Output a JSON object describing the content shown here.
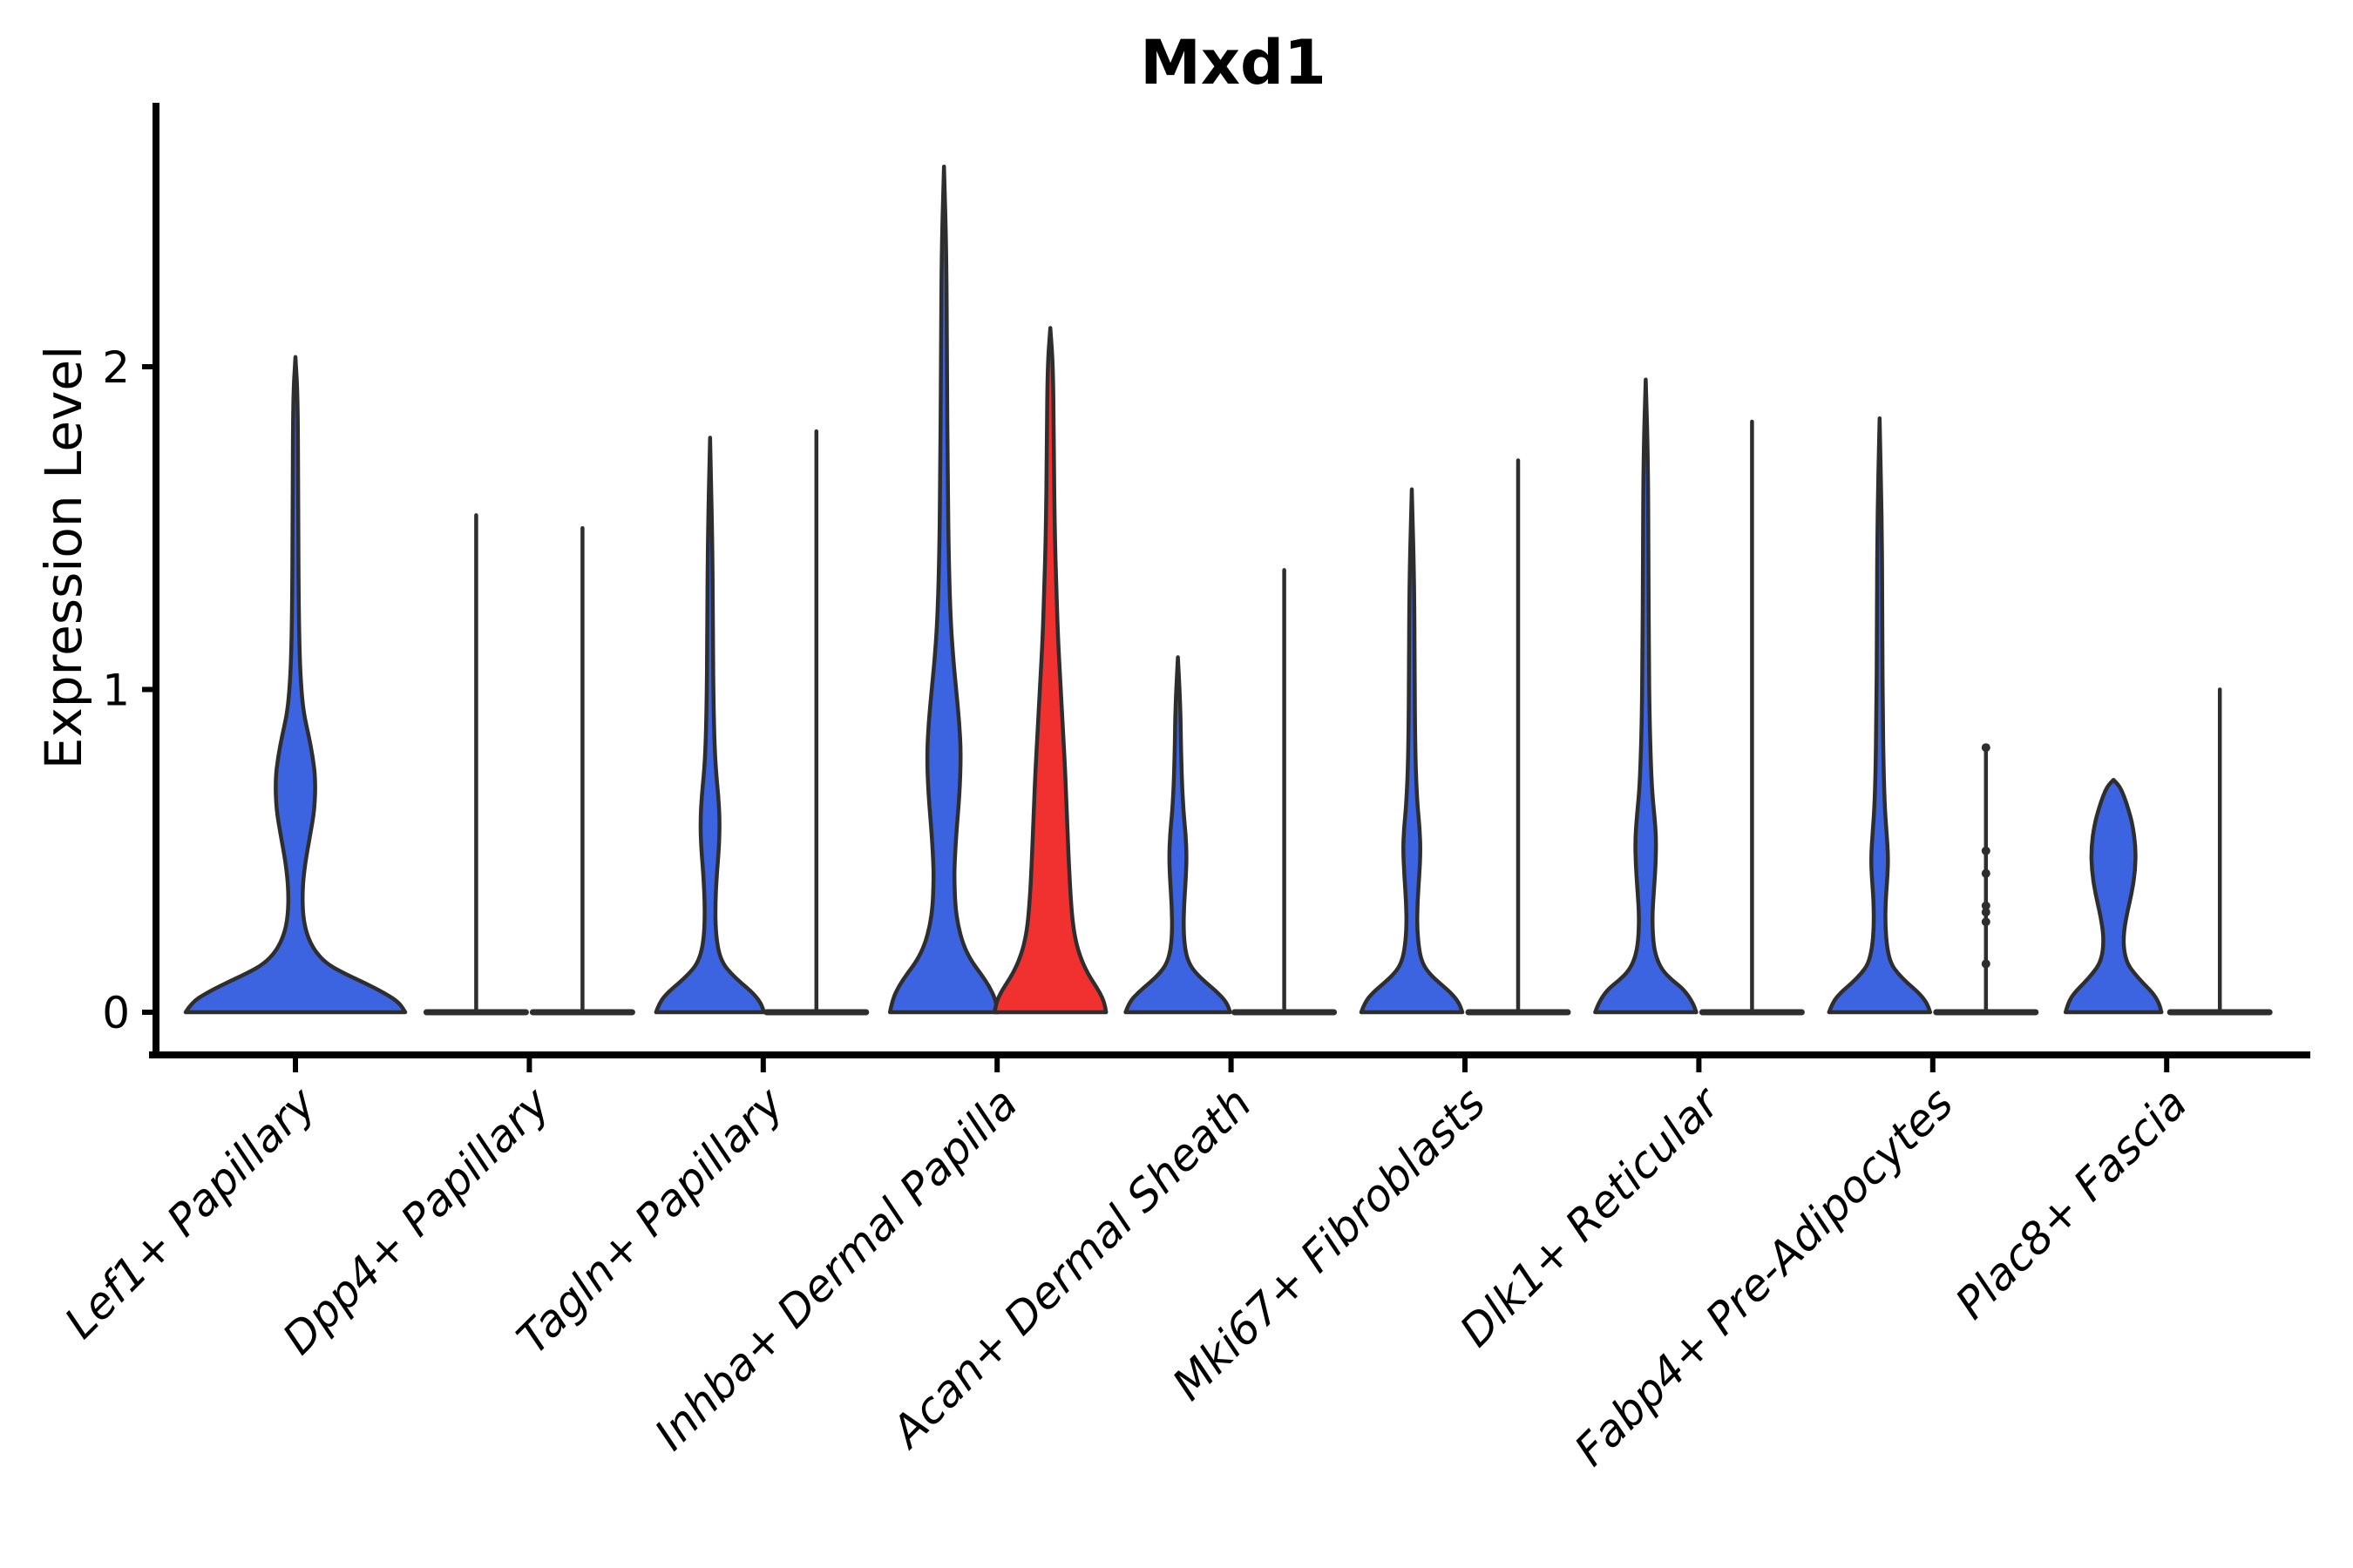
{
  "chart_data": {
    "type": "violin",
    "title": "Mxd1",
    "xlabel": "",
    "ylabel": "Expression Level",
    "ylim": [
      0,
      2.9
    ],
    "yticks": [
      0,
      1,
      2
    ],
    "grid": false,
    "legend": null,
    "colors": {
      "fill_default": "#3C63E0",
      "fill_highlight": "#F03130",
      "outline": "#2E2E2E",
      "axis": "#000000"
    },
    "categories": [
      "Lef1+ Papillary",
      "Dpp4+ Papillary",
      "Tagln+ Papillary",
      "Inhba+ Dermal Papilla",
      "Acan+ Dermal Sheath",
      "Mki67+ Fibroblasts",
      "Dlk1+ Reticular",
      "Fabp4+ Pre-Adipocytes",
      "Plac8+ Fascia"
    ],
    "violins": [
      {
        "category_index": 0,
        "category": "Lef1+ Papillary",
        "position": "single",
        "style": "violin",
        "fill": "default",
        "max_expression": 2.03,
        "profile": [
          [
            0,
            126
          ],
          [
            0.03,
            119
          ],
          [
            0.06,
            102
          ],
          [
            0.09,
            80
          ],
          [
            0.12,
            56
          ],
          [
            0.15,
            36
          ],
          [
            0.19,
            22
          ],
          [
            0.24,
            13
          ],
          [
            0.3,
            8.5
          ],
          [
            0.38,
            8
          ],
          [
            0.46,
            11
          ],
          [
            0.55,
            17
          ],
          [
            0.63,
            22
          ],
          [
            0.72,
            23
          ],
          [
            0.79,
            20
          ],
          [
            0.86,
            15
          ],
          [
            0.92,
            10
          ],
          [
            0.99,
            7
          ],
          [
            1.1,
            4.8
          ],
          [
            1.3,
            3.6
          ],
          [
            1.6,
            3.1
          ],
          [
            1.9,
            2.7
          ],
          [
            2.03,
            0
          ]
        ]
      },
      {
        "category_index": 1,
        "category": "Dpp4+ Papillary",
        "position": "left",
        "style": "spike",
        "fill": "default",
        "max_expression": 1.54,
        "base_halfwidth": 57
      },
      {
        "category_index": 1,
        "category": "Dpp4+ Papillary",
        "position": "right",
        "style": "spike",
        "fill": "default",
        "max_expression": 1.5,
        "base_halfwidth": 57
      },
      {
        "category_index": 2,
        "category": "Tagln+ Papillary",
        "position": "left",
        "style": "violin",
        "fill": "default",
        "max_expression": 1.78,
        "profile": [
          [
            0,
            62
          ],
          [
            0.03,
            58
          ],
          [
            0.06,
            49
          ],
          [
            0.09,
            36
          ],
          [
            0.12,
            24
          ],
          [
            0.15,
            15
          ],
          [
            0.19,
            9.5
          ],
          [
            0.25,
            6.5
          ],
          [
            0.33,
            6
          ],
          [
            0.42,
            7.5
          ],
          [
            0.52,
            10.5
          ],
          [
            0.6,
            11
          ],
          [
            0.67,
            9.5
          ],
          [
            0.74,
            7
          ],
          [
            0.82,
            5.2
          ],
          [
            0.95,
            4
          ],
          [
            1.15,
            3.2
          ],
          [
            1.45,
            2.7
          ],
          [
            1.78,
            0
          ]
        ]
      },
      {
        "category_index": 2,
        "category": "Tagln+ Papillary",
        "position": "right",
        "style": "spike",
        "fill": "default",
        "max_expression": 1.8,
        "base_halfwidth": 57
      },
      {
        "category_index": 3,
        "category": "Inhba+ Dermal Papilla",
        "position": "left",
        "style": "violin",
        "fill": "default",
        "max_expression": 2.62,
        "profile": [
          [
            0,
            62
          ],
          [
            0.04,
            59
          ],
          [
            0.08,
            52
          ],
          [
            0.12,
            42
          ],
          [
            0.16,
            31
          ],
          [
            0.21,
            22
          ],
          [
            0.27,
            16
          ],
          [
            0.33,
            13
          ],
          [
            0.4,
            12
          ],
          [
            0.45,
            12
          ],
          [
            0.55,
            14
          ],
          [
            0.68,
            18
          ],
          [
            0.8,
            19.5
          ],
          [
            0.9,
            17.5
          ],
          [
            1.0,
            14
          ],
          [
            1.1,
            10.5
          ],
          [
            1.22,
            7.5
          ],
          [
            1.4,
            5.5
          ],
          [
            1.65,
            4.3
          ],
          [
            2.0,
            3.4
          ],
          [
            2.35,
            2.8
          ],
          [
            2.62,
            0
          ]
        ]
      },
      {
        "category_index": 3,
        "category": "Inhba+ Dermal Papilla",
        "position": "right",
        "style": "violin",
        "fill": "highlight",
        "max_expression": 2.12,
        "profile": [
          [
            0,
            64
          ],
          [
            0.03,
            62
          ],
          [
            0.06,
            57
          ],
          [
            0.09,
            50
          ],
          [
            0.12,
            43
          ],
          [
            0.16,
            36
          ],
          [
            0.21,
            30
          ],
          [
            0.27,
            26
          ],
          [
            0.35,
            23.5
          ],
          [
            0.45,
            21.5
          ],
          [
            0.55,
            20
          ],
          [
            0.65,
            18.5
          ],
          [
            0.75,
            17
          ],
          [
            0.85,
            15
          ],
          [
            0.95,
            13
          ],
          [
            1.05,
            11
          ],
          [
            1.15,
            9
          ],
          [
            1.3,
            7
          ],
          [
            1.5,
            5
          ],
          [
            1.75,
            4
          ],
          [
            2.0,
            3.2
          ],
          [
            2.12,
            0
          ]
        ]
      },
      {
        "category_index": 4,
        "category": "Acan+ Dermal Sheath",
        "position": "left",
        "style": "violin",
        "fill": "default",
        "max_expression": 1.1,
        "profile": [
          [
            0,
            60
          ],
          [
            0.03,
            56
          ],
          [
            0.06,
            46
          ],
          [
            0.09,
            33
          ],
          [
            0.12,
            21
          ],
          [
            0.15,
            13
          ],
          [
            0.19,
            8.5
          ],
          [
            0.25,
            6.5
          ],
          [
            0.33,
            7
          ],
          [
            0.41,
            9
          ],
          [
            0.48,
            10
          ],
          [
            0.55,
            9
          ],
          [
            0.62,
            6.5
          ],
          [
            0.7,
            4.8
          ],
          [
            0.82,
            3.5
          ],
          [
            0.95,
            2.8
          ],
          [
            1.1,
            0
          ]
        ]
      },
      {
        "category_index": 4,
        "category": "Acan+ Dermal Sheath",
        "position": "right",
        "style": "spike",
        "fill": "default",
        "max_expression": 1.37,
        "base_halfwidth": 57
      },
      {
        "category_index": 5,
        "category": "Mki67+ Fibroblasts",
        "position": "left",
        "style": "violin",
        "fill": "default",
        "max_expression": 1.62,
        "profile": [
          [
            0,
            58
          ],
          [
            0.03,
            54
          ],
          [
            0.06,
            45
          ],
          [
            0.09,
            32
          ],
          [
            0.12,
            20
          ],
          [
            0.15,
            12.5
          ],
          [
            0.19,
            8.5
          ],
          [
            0.26,
            6
          ],
          [
            0.34,
            6.5
          ],
          [
            0.42,
            8.5
          ],
          [
            0.5,
            10
          ],
          [
            0.57,
            9
          ],
          [
            0.64,
            6.5
          ],
          [
            0.73,
            4.8
          ],
          [
            0.85,
            3.8
          ],
          [
            1.05,
            3.2
          ],
          [
            1.35,
            2.7
          ],
          [
            1.62,
            0
          ]
        ]
      },
      {
        "category_index": 5,
        "category": "Mki67+ Fibroblasts",
        "position": "right",
        "style": "spike",
        "fill": "default",
        "max_expression": 1.71,
        "base_halfwidth": 57
      },
      {
        "category_index": 6,
        "category": "Dlk1+ Reticular",
        "position": "left",
        "style": "violin",
        "fill": "default",
        "max_expression": 1.96,
        "profile": [
          [
            0,
            58
          ],
          [
            0.03,
            54
          ],
          [
            0.07,
            44
          ],
          [
            0.1,
            30
          ],
          [
            0.13,
            19
          ],
          [
            0.17,
            12
          ],
          [
            0.22,
            8.5
          ],
          [
            0.3,
            7.5
          ],
          [
            0.38,
            9.5
          ],
          [
            0.46,
            11.5
          ],
          [
            0.54,
            12
          ],
          [
            0.61,
            10
          ],
          [
            0.68,
            7.5
          ],
          [
            0.78,
            5.8
          ],
          [
            0.92,
            4.4
          ],
          [
            1.1,
            3.7
          ],
          [
            1.4,
            3.1
          ],
          [
            1.7,
            2.7
          ],
          [
            1.96,
            0
          ]
        ]
      },
      {
        "category_index": 6,
        "category": "Dlk1+ Reticular",
        "position": "right",
        "style": "spike",
        "fill": "default",
        "max_expression": 1.83,
        "base_halfwidth": 57
      },
      {
        "category_index": 7,
        "category": "Fabp4+ Pre-Adipocytes",
        "position": "left",
        "style": "violin",
        "fill": "default",
        "max_expression": 1.84,
        "profile": [
          [
            0,
            58
          ],
          [
            0.03,
            54
          ],
          [
            0.06,
            45
          ],
          [
            0.09,
            32
          ],
          [
            0.12,
            21
          ],
          [
            0.15,
            13
          ],
          [
            0.2,
            8.5
          ],
          [
            0.27,
            6.5
          ],
          [
            0.35,
            7
          ],
          [
            0.42,
            9
          ],
          [
            0.48,
            9.8
          ],
          [
            0.55,
            8.2
          ],
          [
            0.63,
            6
          ],
          [
            0.75,
            4.6
          ],
          [
            0.92,
            3.7
          ],
          [
            1.15,
            3.1
          ],
          [
            1.5,
            2.7
          ],
          [
            1.84,
            0
          ]
        ]
      },
      {
        "category_index": 7,
        "category": "Fabp4+ Pre-Adipocytes",
        "position": "right",
        "style": "spike",
        "fill": "default",
        "max_expression": 0.82,
        "base_halfwidth": 57,
        "jitter_dots": [
          0.82,
          0.5,
          0.43,
          0.33,
          0.31,
          0.28,
          0.15
        ]
      },
      {
        "category_index": 8,
        "category": "Plac8+ Fascia",
        "position": "left",
        "style": "violin",
        "fill": "default",
        "max_expression": 0.72,
        "profile": [
          [
            0,
            55
          ],
          [
            0.03,
            52
          ],
          [
            0.06,
            45
          ],
          [
            0.09,
            34
          ],
          [
            0.12,
            24
          ],
          [
            0.15,
            16
          ],
          [
            0.19,
            12
          ],
          [
            0.24,
            11.5
          ],
          [
            0.3,
            15
          ],
          [
            0.37,
            21
          ],
          [
            0.44,
            25
          ],
          [
            0.51,
            25.5
          ],
          [
            0.58,
            22
          ],
          [
            0.63,
            17
          ],
          [
            0.67,
            12
          ],
          [
            0.7,
            7
          ],
          [
            0.72,
            0
          ]
        ]
      },
      {
        "category_index": 8,
        "category": "Plac8+ Fascia",
        "position": "right",
        "style": "spike",
        "fill": "default",
        "max_expression": 1.0,
        "base_halfwidth": 57
      }
    ]
  }
}
